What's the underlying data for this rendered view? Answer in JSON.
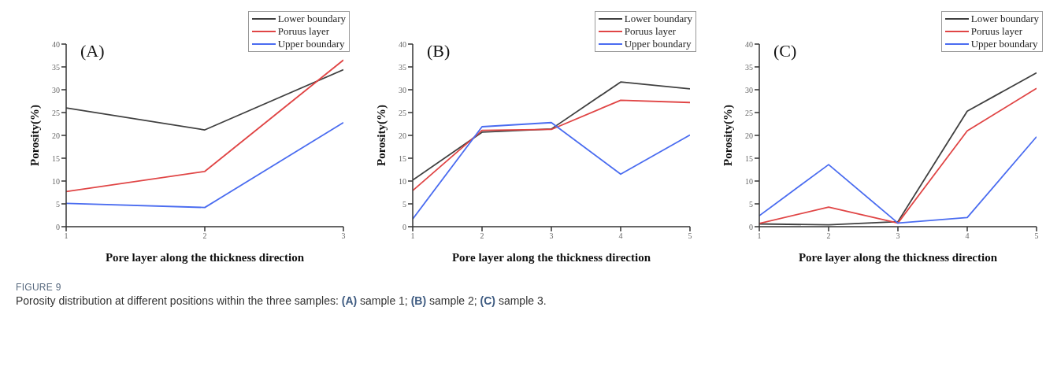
{
  "chart_data": [
    {
      "type": "line",
      "title": "(A)",
      "xlabel": "Pore layer along the thickness direction",
      "ylabel": "Porosity(%)",
      "x": [
        1,
        2,
        3
      ],
      "xlim": [
        1,
        3
      ],
      "xticks": [
        1,
        2,
        3
      ],
      "ylim": [
        0,
        40
      ],
      "yticks": [
        0,
        5,
        10,
        15,
        20,
        25,
        30,
        35,
        40
      ],
      "grid": false,
      "legend": "top right",
      "marker": "none",
      "line_style": "solid",
      "series": [
        {
          "name": "Lower boundary",
          "color": "#404040",
          "values": [
            26.0,
            21.2,
            34.4
          ]
        },
        {
          "name": "Poruus layer",
          "color": "#e04545",
          "values": [
            7.7,
            12.1,
            36.5
          ]
        },
        {
          "name": "Upper boundary",
          "color": "#4a6cf0",
          "values": [
            5.1,
            4.2,
            22.8
          ]
        }
      ],
      "annotations": [
        "FIGURE 9",
        "Porosity distribution at different positions within the three samples: (A) sample 1; (B) sample 2; (C) sample 3."
      ]
    },
    {
      "type": "line",
      "title": "(B)",
      "xlabel": "Pore layer along the thickness direction",
      "ylabel": "Porosity(%)",
      "x": [
        1,
        2,
        3,
        4,
        5
      ],
      "xlim": [
        1,
        5
      ],
      "xticks": [
        1,
        2,
        3,
        4,
        5
      ],
      "ylim": [
        0,
        40
      ],
      "yticks": [
        0,
        5,
        10,
        15,
        20,
        25,
        30,
        35,
        40
      ],
      "grid": false,
      "legend": "top right",
      "marker": "none",
      "line_style": "solid",
      "series": [
        {
          "name": "Lower boundary",
          "color": "#404040",
          "values": [
            10.2,
            20.7,
            21.4,
            31.7,
            30.2
          ]
        },
        {
          "name": "Poruus layer",
          "color": "#e04545",
          "values": [
            7.9,
            21.1,
            21.3,
            27.7,
            27.2
          ]
        },
        {
          "name": "Upper boundary",
          "color": "#4a6cf0",
          "values": [
            1.7,
            21.9,
            22.8,
            11.5,
            20.1
          ]
        }
      ]
    },
    {
      "type": "line",
      "title": "(C)",
      "xlabel": "Pore layer along the thickness direction",
      "ylabel": "Porosity(%)",
      "x": [
        1,
        2,
        3,
        4,
        5
      ],
      "xlim": [
        1,
        5
      ],
      "xticks": [
        1,
        2,
        3,
        4,
        5
      ],
      "ylim": [
        0,
        40
      ],
      "yticks": [
        0,
        5,
        10,
        15,
        20,
        25,
        30,
        35,
        40
      ],
      "grid": false,
      "legend": "top right",
      "marker": "none",
      "line_style": "solid",
      "series": [
        {
          "name": "Lower boundary",
          "color": "#404040",
          "values": [
            0.6,
            0.4,
            1.1,
            25.3,
            33.7
          ]
        },
        {
          "name": "Poruus layer",
          "color": "#e04545",
          "values": [
            0.7,
            4.3,
            0.8,
            21.0,
            30.3
          ]
        },
        {
          "name": "Upper boundary",
          "color": "#4a6cf0",
          "values": [
            2.4,
            13.6,
            0.8,
            2.0,
            19.7
          ]
        }
      ]
    }
  ]
}
